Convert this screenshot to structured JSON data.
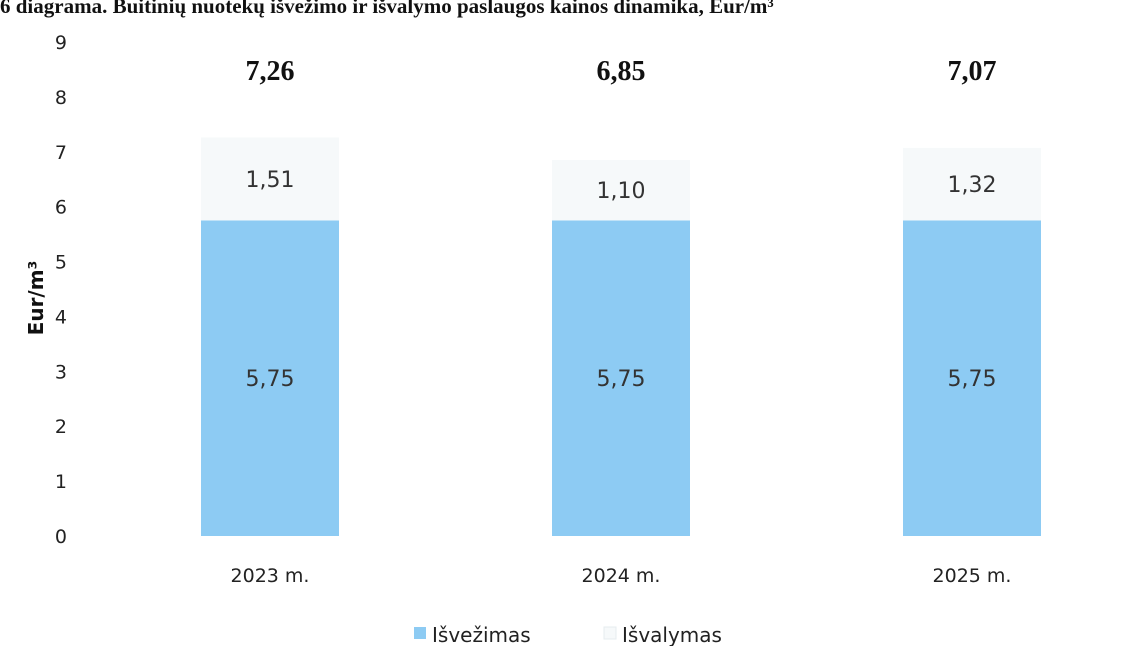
{
  "chart_data": {
    "type": "bar",
    "stacked": true,
    "title": "6 diagrama. Buitinių nuotekų išvežimo ir išvalymo paslaugos kainos dinamika, Eur/m³",
    "ylabel": "Eur/m³",
    "ylim": [
      0,
      9
    ],
    "yticks": [
      0,
      1,
      2,
      3,
      4,
      5,
      6,
      7,
      8,
      9
    ],
    "categories": [
      "2023 m.",
      "2024 m.",
      "2025 m."
    ],
    "series": [
      {
        "name": "Išvežimas",
        "values": [
          5.75,
          5.75,
          5.75
        ],
        "labels": [
          "5,75",
          "5,75",
          "5,75"
        ],
        "color": "#8dcbf3"
      },
      {
        "name": "Išvalymas",
        "values": [
          1.51,
          1.1,
          1.32
        ],
        "labels": [
          "1,51",
          "1,10",
          "1,32"
        ],
        "color": "#f6f9fa"
      }
    ],
    "totals": [
      "7,26",
      "6,85",
      "7,07"
    ],
    "legend_position": "bottom",
    "grid": false
  }
}
